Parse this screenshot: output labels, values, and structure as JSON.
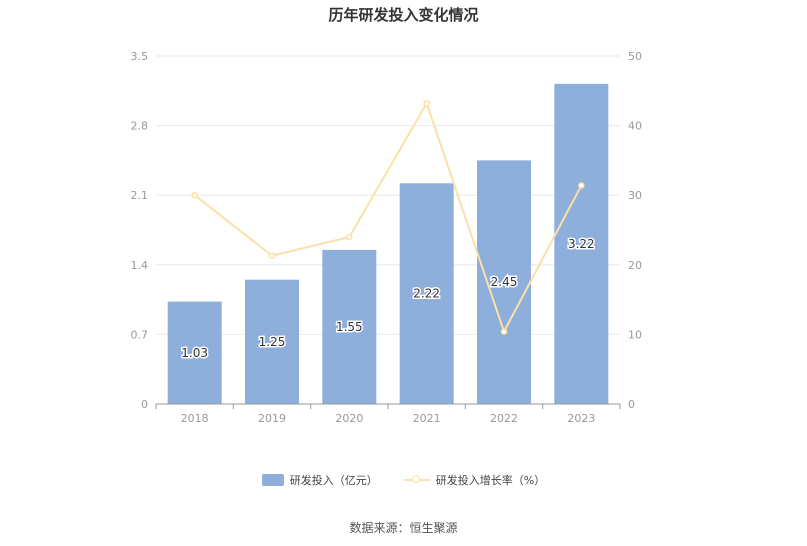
{
  "chart_data": {
    "type": "bar",
    "title": "历年研发投入变化情况",
    "categories": [
      "2018",
      "2019",
      "2020",
      "2021",
      "2022",
      "2023"
    ],
    "series": [
      {
        "name": "研发投入（亿元）",
        "type": "bar",
        "axis": "left",
        "values": [
          1.03,
          1.25,
          1.55,
          2.22,
          2.45,
          3.22
        ],
        "color": "#8eaedb"
      },
      {
        "name": "研发投入增长率（%）",
        "type": "line",
        "axis": "right",
        "values": [
          30.0,
          21.3,
          24.0,
          43.2,
          10.4,
          31.4
        ],
        "color": "#fbe0a8"
      }
    ],
    "left_axis": {
      "ylim": [
        0,
        3.5
      ],
      "ticks": [
        "0",
        "0.7",
        "1.4",
        "2.1",
        "2.8",
        "3.5"
      ]
    },
    "right_axis": {
      "ylim": [
        0,
        50
      ],
      "ticks": [
        "0",
        "10",
        "20",
        "30",
        "40",
        "50"
      ]
    },
    "grid": true,
    "legend_position": "bottom"
  },
  "source": "数据来源：恒生聚源"
}
